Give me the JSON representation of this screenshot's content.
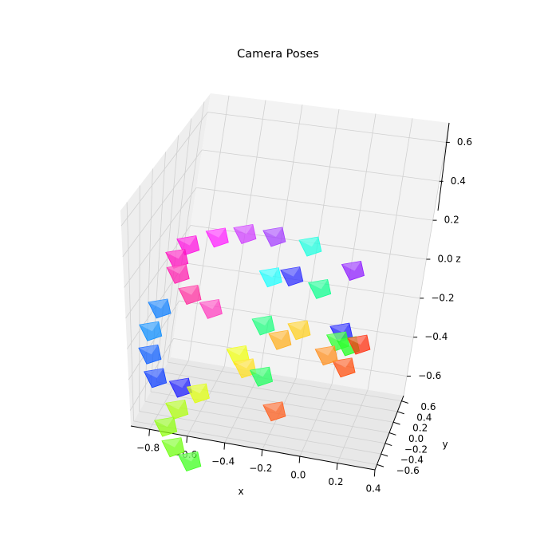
{
  "chart_data": {
    "type": "scatter",
    "title": "Camera Poses",
    "xlabel": "x",
    "ylabel": "y",
    "zlabel": "z",
    "xlim": [
      -0.9,
      0.4
    ],
    "ylim": [
      -0.7,
      0.7
    ],
    "zlim": [
      -0.7,
      0.7
    ],
    "xticks": [
      "−0.8",
      "−0.6",
      "−0.4",
      "−0.2",
      "0.0",
      "0.2",
      "0.4"
    ],
    "yticks": [
      "−0.6",
      "−0.4",
      "−0.2",
      "0.0",
      "0.2",
      "0.4",
      "0.6"
    ],
    "zticks": [
      "−0.6",
      "−0.4",
      "−0.2",
      "0.0",
      "0.2",
      "0.4",
      "0.6"
    ],
    "grid": true,
    "marker": "camera-frustum",
    "colormap": "hsv",
    "points": [
      {
        "x": -0.3,
        "y": -0.35,
        "z": 0.4,
        "color": "#a640ff"
      },
      {
        "x": -0.42,
        "y": -0.45,
        "z": 0.45,
        "color": "#d040ff"
      },
      {
        "x": -0.55,
        "y": -0.4,
        "z": 0.4,
        "color": "#ff20ff"
      },
      {
        "x": -0.7,
        "y": -0.3,
        "z": 0.3,
        "color": "#ff10e0"
      },
      {
        "x": -0.78,
        "y": -0.15,
        "z": 0.15,
        "color": "#ff10c0"
      },
      {
        "x": -0.8,
        "y": 0.0,
        "z": 0.0,
        "color": "#ff20b0"
      },
      {
        "x": -0.75,
        "y": 0.1,
        "z": -0.15,
        "color": "#ff30a0"
      },
      {
        "x": -0.65,
        "y": 0.2,
        "z": -0.25,
        "color": "#ff40c0"
      },
      {
        "x": -0.9,
        "y": 0.1,
        "z": -0.25,
        "color": "#1080ff"
      },
      {
        "x": -0.92,
        "y": 0.0,
        "z": -0.35,
        "color": "#1090ff"
      },
      {
        "x": -0.9,
        "y": -0.1,
        "z": -0.45,
        "color": "#1060ff"
      },
      {
        "x": -0.85,
        "y": -0.2,
        "z": -0.55,
        "color": "#1040ff"
      },
      {
        "x": -0.7,
        "y": -0.3,
        "z": -0.55,
        "color": "#2020ff"
      },
      {
        "x": -0.6,
        "y": -0.35,
        "z": -0.55,
        "color": "#e0ff10"
      },
      {
        "x": -0.7,
        "y": -0.4,
        "z": -0.65,
        "color": "#b0ff10"
      },
      {
        "x": -0.75,
        "y": -0.45,
        "z": -0.75,
        "color": "#90ff10"
      },
      {
        "x": -0.7,
        "y": -0.5,
        "z": -0.85,
        "color": "#70ff10"
      },
      {
        "x": -0.6,
        "y": -0.55,
        "z": -0.9,
        "color": "#40ff20"
      },
      {
        "x": -0.45,
        "y": -0.05,
        "z": -0.4,
        "color": "#f0ff10"
      },
      {
        "x": -0.4,
        "y": -0.1,
        "z": -0.45,
        "color": "#ffe020"
      },
      {
        "x": -0.3,
        "y": -0.2,
        "z": -0.45,
        "color": "#20ff60"
      },
      {
        "x": -0.2,
        "y": -0.3,
        "z": -0.6,
        "color": "#ff6020"
      },
      {
        "x": -0.35,
        "y": 0.05,
        "z": -0.25,
        "color": "#20ff80"
      },
      {
        "x": -0.25,
        "y": 0.0,
        "z": -0.3,
        "color": "#ffb020"
      },
      {
        "x": -0.15,
        "y": -0.1,
        "z": -0.2,
        "color": "#ffd020"
      },
      {
        "x": -0.35,
        "y": 0.1,
        "z": 0.0,
        "color": "#20ffff"
      },
      {
        "x": -0.25,
        "y": 0.15,
        "z": 0.0,
        "color": "#3030ff"
      },
      {
        "x": -0.1,
        "y": 0.15,
        "z": -0.05,
        "color": "#10ff90"
      },
      {
        "x": -0.2,
        "y": 0.35,
        "z": 0.1,
        "color": "#20ffe0"
      },
      {
        "x": 0.05,
        "y": 0.2,
        "z": 0.05,
        "color": "#9020ff"
      },
      {
        "x": 0.05,
        "y": 0.1,
        "z": -0.25,
        "color": "#2020ff"
      },
      {
        "x": 0.1,
        "y": 0.05,
        "z": -0.3,
        "color": "#20ff20"
      },
      {
        "x": 0.05,
        "y": -0.05,
        "z": -0.25,
        "color": "#30ff30"
      },
      {
        "x": 0.15,
        "y": 0.1,
        "z": -0.3,
        "color": "#ff3010"
      },
      {
        "x": 0.1,
        "y": 0.0,
        "z": -0.4,
        "color": "#ff5010"
      },
      {
        "x": 0.0,
        "y": 0.0,
        "z": -0.35,
        "color": "#ff9020"
      }
    ]
  }
}
